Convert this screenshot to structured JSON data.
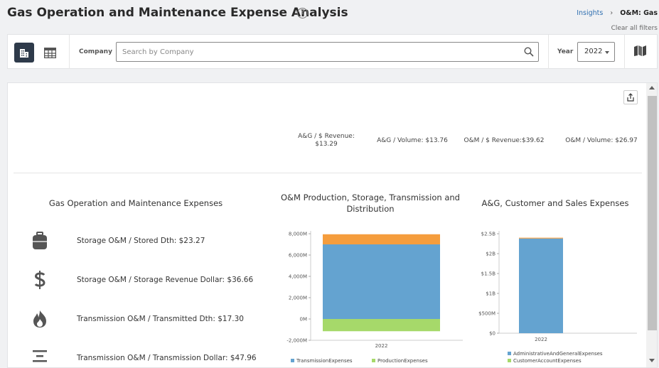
{
  "header": {
    "title": "Gas Operation and Maintenance Expense Analysis",
    "help_symbol": "?",
    "breadcrumb": {
      "parent": "Insights",
      "current": "O&M: Gas"
    },
    "clear_filters": "Clear all filters"
  },
  "filters": {
    "company_label": "Company",
    "search_placeholder": "Search by Company",
    "search_value": "",
    "year_label": "Year",
    "year_value": "2022"
  },
  "icons": {
    "dashboard_view": "building-icon",
    "table_view": "table-icon",
    "search": "search-icon",
    "map": "map-icon",
    "share": "share-icon"
  },
  "metrics": {
    "ag_revenue": "A&G / $ Revenue:\n$13.29",
    "ag_volume": "A&G / Volume: $13.76",
    "om_revenue": "O&M / $ Revenue:$39.62",
    "om_volume": "O&M / Volume: $26.97"
  },
  "kpi_section": {
    "title": "Gas Operation and Maintenance Expenses",
    "items": [
      {
        "icon": "storage-tank-icon",
        "label": "Storage O&M / Stored Dth: $23.27"
      },
      {
        "icon": "dollar-icon",
        "label": "Storage O&M / Storage Revenue Dollar: $36.66"
      },
      {
        "icon": "flame-icon",
        "label": "Transmission O&M / Transmitted Dth: $17.30"
      },
      {
        "icon": "pipeline-icon",
        "label": "Transmission O&M / Transmission Dollar: $47.96"
      }
    ]
  },
  "colors": {
    "transmission": "#f59d3d",
    "storage_blue": "#64a3d0",
    "production": "#a6d96a",
    "ag_blue": "#64a3d0",
    "customer_green": "#a6d96a"
  },
  "chart_data": [
    {
      "type": "bar",
      "stacked": true,
      "title": "O&M Production, Storage, Transmission and Distribution",
      "categories": [
        "2022"
      ],
      "ylim": [
        -2000,
        8000
      ],
      "yticks": [
        "8,000M",
        "6,000M",
        "4,000M",
        "2,000M",
        "0M",
        "-2,000M"
      ],
      "series": [
        {
          "name": "ProductionExpenses",
          "values": [
            -1150
          ],
          "color": "#a6d96a"
        },
        {
          "name": "",
          "values": [
            7000
          ],
          "color": "#64a3d0"
        },
        {
          "name": "TransmissionExpenses",
          "values": [
            950
          ],
          "color": "#f59d3d"
        }
      ],
      "legend": [
        "TransmissionExpenses",
        "ProductionExpenses"
      ],
      "legend_placement": "bottom"
    },
    {
      "type": "bar",
      "stacked": true,
      "title": "A&G, Customer and Sales Expenses",
      "categories": [
        "2022"
      ],
      "ylim": [
        0,
        2.5
      ],
      "yticks": [
        "$2.5B",
        "$2B",
        "$1.5B",
        "$1B",
        "$500M",
        "$0"
      ],
      "series": [
        {
          "name": "AdministrativeAndGeneralExpenses",
          "values": [
            2.38
          ],
          "color": "#64a3d0"
        },
        {
          "name": "",
          "values": [
            0.02
          ],
          "color": "#f59d3d"
        }
      ],
      "legend": [
        "AdministrativeAndGeneralExpenses",
        "CustomerAccountExpenses"
      ],
      "legend_placement": "bottom"
    }
  ]
}
